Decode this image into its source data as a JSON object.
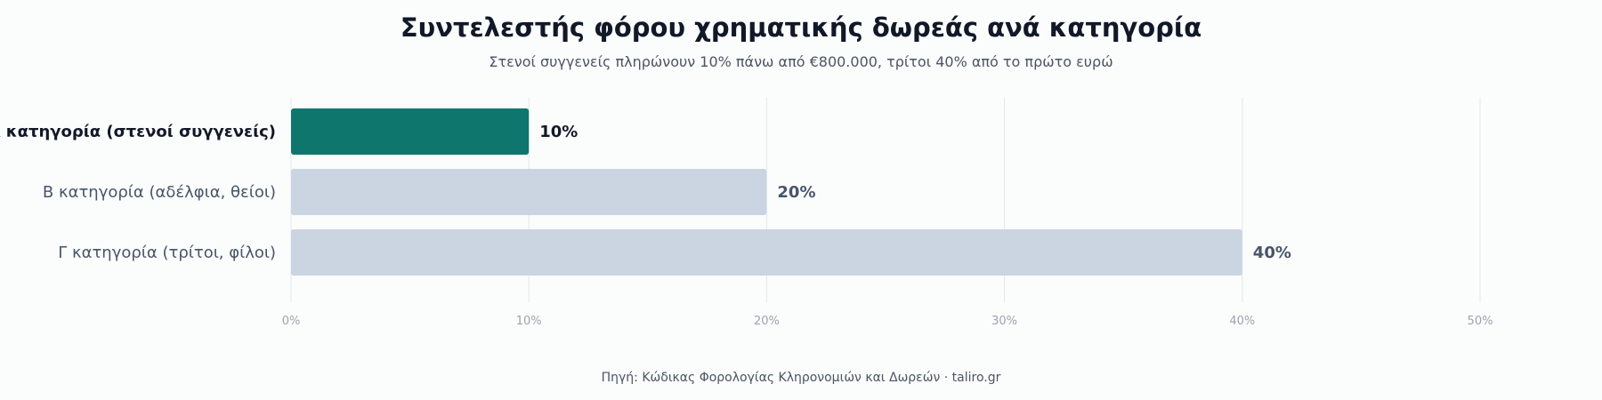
{
  "chart_data": {
    "type": "bar",
    "orientation": "horizontal",
    "title": "Συντελεστής φόρου χρηματικής δωρεάς ανά κατηγορία",
    "subtitle": "Στενοί συγγενείς πληρώνουν 10% πάνω από €800.000, τρίτοι 40% από το πρώτο ευρώ",
    "source": "Πηγή: Κώδικας Φορολογίας Κληρονομιών και Δωρεών · taliro.gr",
    "categories": [
      "Α κατηγορία (στενοί συγγενείς)",
      "Β κατηγορία (αδέλφια, θείοι)",
      "Γ κατηγορία (τρίτοι, φίλοι)"
    ],
    "values": [
      10,
      20,
      40
    ],
    "value_labels": [
      "10%",
      "20%",
      "40%"
    ],
    "highlighted_index": 0,
    "xlim": [
      0,
      50
    ],
    "x_ticks": [
      0,
      10,
      20,
      30,
      40,
      50
    ],
    "x_tick_labels": [
      "0%",
      "10%",
      "20%",
      "30%",
      "40%",
      "50%"
    ],
    "grid": "vertical",
    "colors": {
      "highlight": "#0f766e",
      "bar": "#cbd5e1",
      "grid": "#e5e7eb",
      "highlight_label": "#111827",
      "label": "#475569"
    }
  }
}
